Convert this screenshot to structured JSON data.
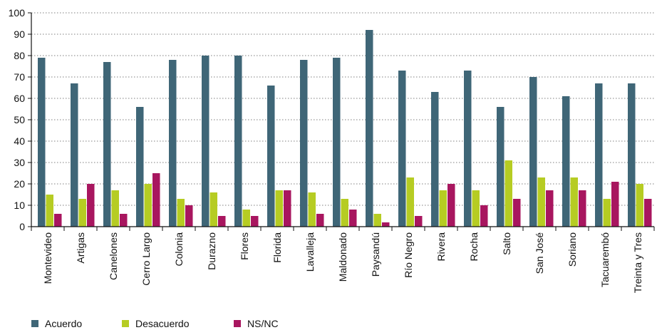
{
  "chart_data": {
    "type": "bar",
    "categories": [
      "Montevideo",
      "Artigas",
      "Canelones",
      "Cerro Largo",
      "Colonia",
      "Durazno",
      "Flores",
      "Florida",
      "Lavalleja",
      "Maldonado",
      "Paysandú",
      "Río Negro",
      "Rivera",
      "Rocha",
      "Salto",
      "San José",
      "Soriano",
      "Tacuarembó",
      "Treinta y Tres"
    ],
    "series": [
      {
        "name": "Acuerdo",
        "color": "#3f6677",
        "values": [
          79,
          67,
          77,
          56,
          78,
          80,
          80,
          66,
          78,
          79,
          92,
          73,
          63,
          73,
          56,
          70,
          61,
          67,
          67
        ]
      },
      {
        "name": "Desacuerdo",
        "color": "#b6cc23",
        "values": [
          15,
          13,
          17,
          20,
          13,
          16,
          8,
          17,
          16,
          13,
          6,
          23,
          17,
          17,
          31,
          23,
          23,
          13,
          20
        ]
      },
      {
        "name": "NS/NC",
        "color": "#a8165f",
        "values": [
          6,
          20,
          6,
          25,
          10,
          5,
          5,
          17,
          6,
          8,
          2,
          5,
          20,
          10,
          13,
          17,
          17,
          21,
          13
        ]
      }
    ],
    "yticks": [
      0,
      10,
      20,
      30,
      40,
      50,
      60,
      70,
      80,
      90,
      100
    ],
    "ylim": [
      0,
      100
    ],
    "grid": true,
    "legend_position": "bottom-left"
  }
}
